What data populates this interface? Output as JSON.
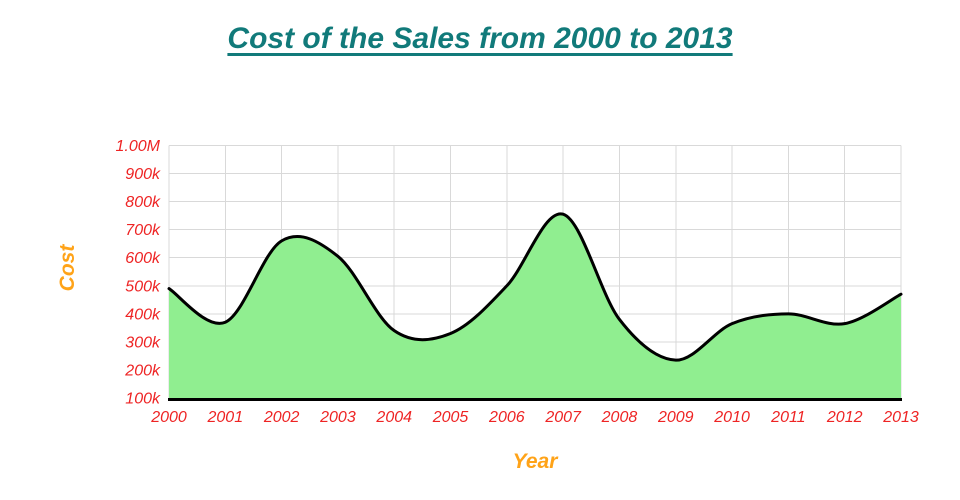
{
  "title": "Cost of the Sales from 2000 to 2013",
  "axes": {
    "x_title": "Year",
    "y_title": "Cost"
  },
  "colors": {
    "title_text": "#117a7a",
    "tick_text": "#ee2424",
    "axis_title_text": "#ffa318",
    "area_fill": "#90ee90",
    "line_stroke": "#000000",
    "gridline": "#d9d9d9",
    "axis_line": "#000000",
    "background": "#ffffff"
  },
  "chart_data": {
    "type": "area",
    "title": "Cost of the Sales from 2000 to 2013",
    "xlabel": "Year",
    "ylabel": "Cost",
    "curve": "smooth-spline",
    "grid": true,
    "legend": false,
    "x": [
      2000,
      2001,
      2002,
      2003,
      2004,
      2005,
      2006,
      2007,
      2008,
      2009,
      2010,
      2011,
      2012,
      2013
    ],
    "x_tick_labels": [
      "2000",
      "2001",
      "2002",
      "2003",
      "2004",
      "2005",
      "2006",
      "2007",
      "2008",
      "2009",
      "2010",
      "2011",
      "2012",
      "2013"
    ],
    "values": [
      490000,
      370000,
      660000,
      605000,
      340000,
      330000,
      500000,
      755000,
      380000,
      235000,
      365000,
      400000,
      365000,
      470000
    ],
    "ylim": [
      100000,
      1000000
    ],
    "y_ticks": [
      100000,
      200000,
      300000,
      400000,
      500000,
      600000,
      700000,
      800000,
      900000,
      1000000
    ],
    "y_tick_labels": [
      "100k",
      "200k",
      "300k",
      "400k",
      "500k",
      "600k",
      "700k",
      "800k",
      "900k",
      "1.00M"
    ]
  }
}
